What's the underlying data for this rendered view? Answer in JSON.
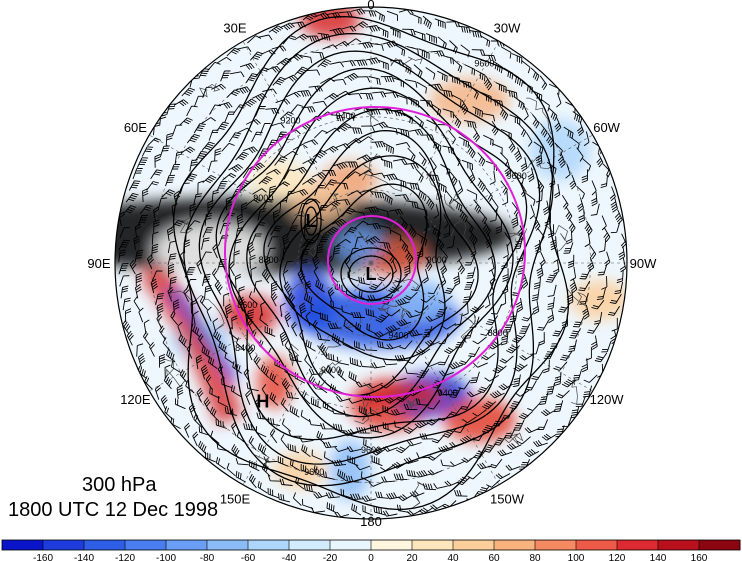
{
  "map": {
    "level": "300 hPa",
    "valid_time": "1800 UTC 12 Dec 1998",
    "longitude_labels": [
      {
        "text": "0",
        "lon": 0
      },
      {
        "text": "30W",
        "lon": 30
      },
      {
        "text": "60W",
        "lon": 60
      },
      {
        "text": "90W",
        "lon": 90
      },
      {
        "text": "120W",
        "lon": 120
      },
      {
        "text": "150W",
        "lon": 150
      },
      {
        "text": "180",
        "lon": 180
      },
      {
        "text": "150E",
        "lon": 210
      },
      {
        "text": "120E",
        "lon": 240
      },
      {
        "text": "90E",
        "lon": 270
      },
      {
        "text": "60E",
        "lon": 300
      },
      {
        "text": "30E",
        "lon": 330
      }
    ],
    "centers": [
      {
        "text": "L",
        "lon": 305,
        "colat": 20
      },
      {
        "text": "L",
        "lon": 180,
        "colat": 3
      },
      {
        "text": "H",
        "lon": 218,
        "colat": 48
      }
    ],
    "contour_labels": [
      "9600",
      "9400",
      "9200",
      "9000",
      "8800",
      "8600",
      "8400",
      "9400",
      "9600",
      "9600",
      "8800",
      "9000",
      "9000",
      "9400",
      "9600"
    ],
    "colors": {
      "contour": "#000000",
      "reference_circles": "#e020d8",
      "graticule": "#555555"
    },
    "colorbar": {
      "ticks": [
        "-160",
        "-140",
        "-120",
        "-100",
        "-80",
        "-60",
        "-40",
        "-20",
        "0",
        "20",
        "40",
        "60",
        "80",
        "100",
        "120",
        "140",
        "160"
      ],
      "colors": [
        "#0a14c8",
        "#1e3cdc",
        "#2f5ee6",
        "#4a7ef0",
        "#6a9ef5",
        "#8cbcf8",
        "#aed6fb",
        "#d2ecfd",
        "#e8f6fe",
        "#fff6e0",
        "#fde6bc",
        "#fbcf9c",
        "#f8b27e",
        "#f58a62",
        "#ee5a48",
        "#dc2a30",
        "#b8101c",
        "#8c0612"
      ]
    }
  }
}
